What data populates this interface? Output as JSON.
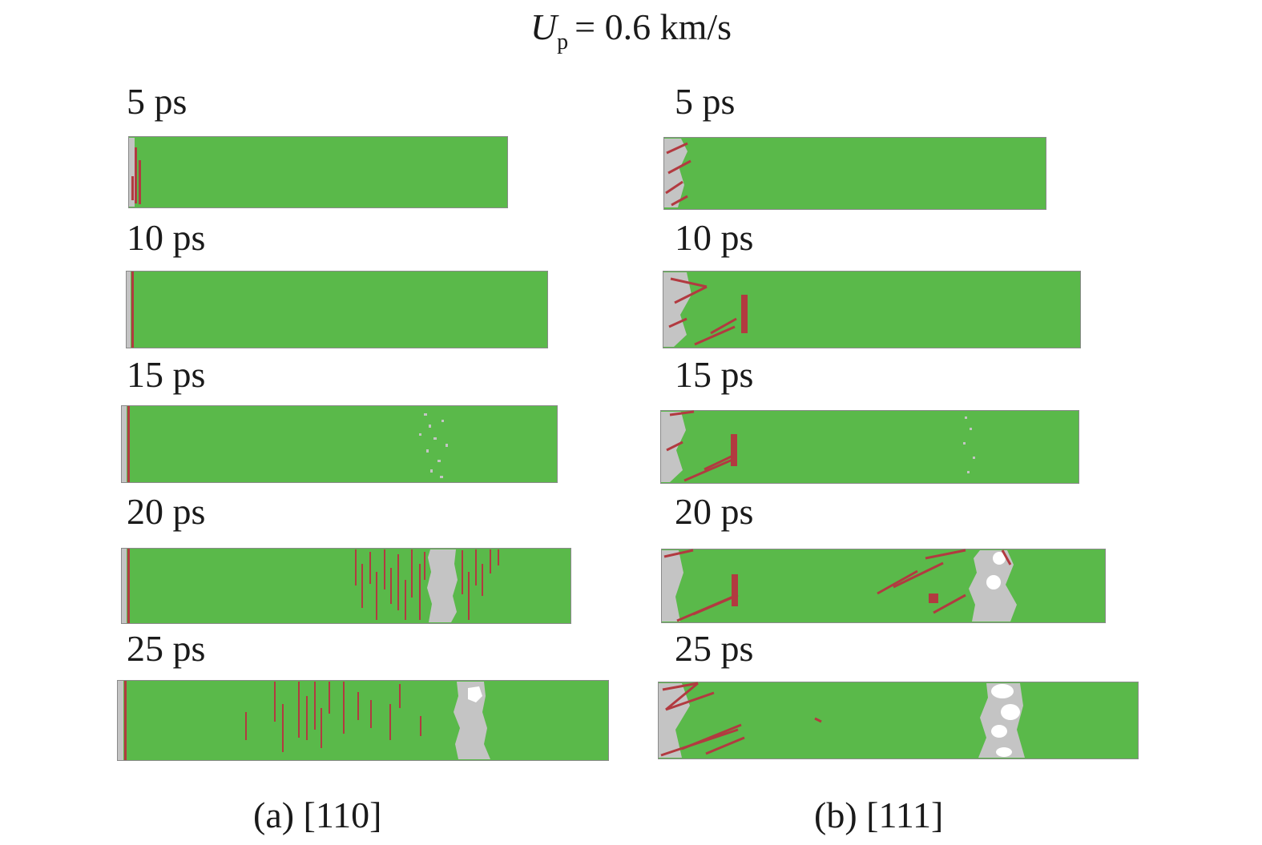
{
  "title": {
    "symbol": "U",
    "subscript": "p",
    "rest": "= 0.6 km/s"
  },
  "colors": {
    "fcc": "#5ab94a",
    "stacking_fault": "#b23a40",
    "disordered": "#c4c4c4",
    "void": "#ffffff",
    "box_edge": "#8a8a8a"
  },
  "columns": [
    {
      "id": "a",
      "caption": "(a) [110]",
      "frames": [
        {
          "time": "5 ps"
        },
        {
          "time": "10 ps"
        },
        {
          "time": "15 ps"
        },
        {
          "time": "20 ps"
        },
        {
          "time": "25 ps"
        }
      ]
    },
    {
      "id": "b",
      "caption": "(b) [111]",
      "frames": [
        {
          "time": "5 ps"
        },
        {
          "time": "10 ps"
        },
        {
          "time": "15 ps"
        },
        {
          "time": "20 ps"
        },
        {
          "time": "25 ps"
        }
      ]
    }
  ]
}
